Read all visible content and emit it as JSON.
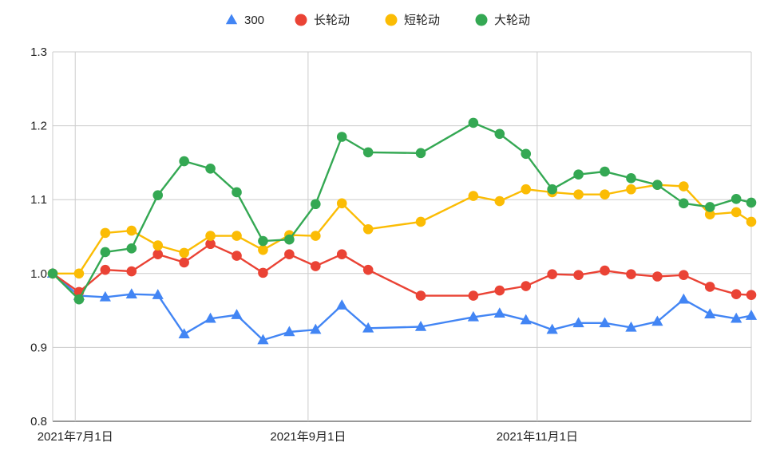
{
  "chart_data": {
    "type": "line",
    "title": "",
    "xlabel": "",
    "ylabel": "",
    "ylim": [
      0.8,
      1.3
    ],
    "yticks": [
      "0.8",
      "0.9",
      "1.0",
      "1.1",
      "1.2",
      "1.3"
    ],
    "xtick_labels": [
      "2021年7月1日",
      "2021年9月1日",
      "2021年11月1日"
    ],
    "xtick_dates": [
      "2021-07-01",
      "2021-09-01",
      "2021-11-01"
    ],
    "x_range": [
      "2021-06-25",
      "2021-12-28"
    ],
    "grid": true,
    "legend_position": "top",
    "x": [
      "2021-06-25",
      "2021-07-02",
      "2021-07-09",
      "2021-07-16",
      "2021-07-23",
      "2021-07-30",
      "2021-08-06",
      "2021-08-13",
      "2021-08-20",
      "2021-08-27",
      "2021-09-03",
      "2021-09-10",
      "2021-09-17",
      "2021-10-01",
      "2021-10-15",
      "2021-10-22",
      "2021-10-29",
      "2021-11-05",
      "2021-11-12",
      "2021-11-19",
      "2021-11-26",
      "2021-12-03",
      "2021-12-10",
      "2021-12-17",
      "2021-12-24",
      "2021-12-28"
    ],
    "series": [
      {
        "name": "300",
        "color": "#4285F4",
        "marker": "triangle",
        "values": [
          1.0,
          0.97,
          0.968,
          0.972,
          0.971,
          0.918,
          0.939,
          0.944,
          0.91,
          0.921,
          0.924,
          0.957,
          0.926,
          0.928,
          0.941,
          0.946,
          0.937,
          0.924,
          0.933,
          0.933,
          0.927,
          0.935,
          0.965,
          0.945,
          0.939,
          0.943
        ]
      },
      {
        "name": "长轮动",
        "color": "#EA4335",
        "marker": "circle",
        "values": [
          1.0,
          0.975,
          1.005,
          1.003,
          1.026,
          1.015,
          1.04,
          1.024,
          1.001,
          1.026,
          1.01,
          1.026,
          1.005,
          0.97,
          0.97,
          0.977,
          0.983,
          0.999,
          0.998,
          1.004,
          0.999,
          0.996,
          0.998,
          0.982,
          0.972,
          0.971
        ]
      },
      {
        "name": "短轮动",
        "color": "#FBBC04",
        "marker": "circle",
        "values": [
          1.0,
          1.0,
          1.055,
          1.058,
          1.038,
          1.028,
          1.051,
          1.051,
          1.032,
          1.052,
          1.051,
          1.095,
          1.06,
          1.07,
          1.105,
          1.098,
          1.114,
          1.11,
          1.107,
          1.107,
          1.114,
          1.12,
          1.118,
          1.08,
          1.083,
          1.07
        ]
      },
      {
        "name": "大轮动",
        "color": "#34A853",
        "marker": "circle",
        "values": [
          1.0,
          0.965,
          1.029,
          1.034,
          1.106,
          1.152,
          1.142,
          1.11,
          1.044,
          1.046,
          1.094,
          1.185,
          1.164,
          1.163,
          1.204,
          1.189,
          1.162,
          1.114,
          1.134,
          1.138,
          1.129,
          1.12,
          1.095,
          1.09,
          1.101,
          1.096
        ]
      }
    ]
  }
}
